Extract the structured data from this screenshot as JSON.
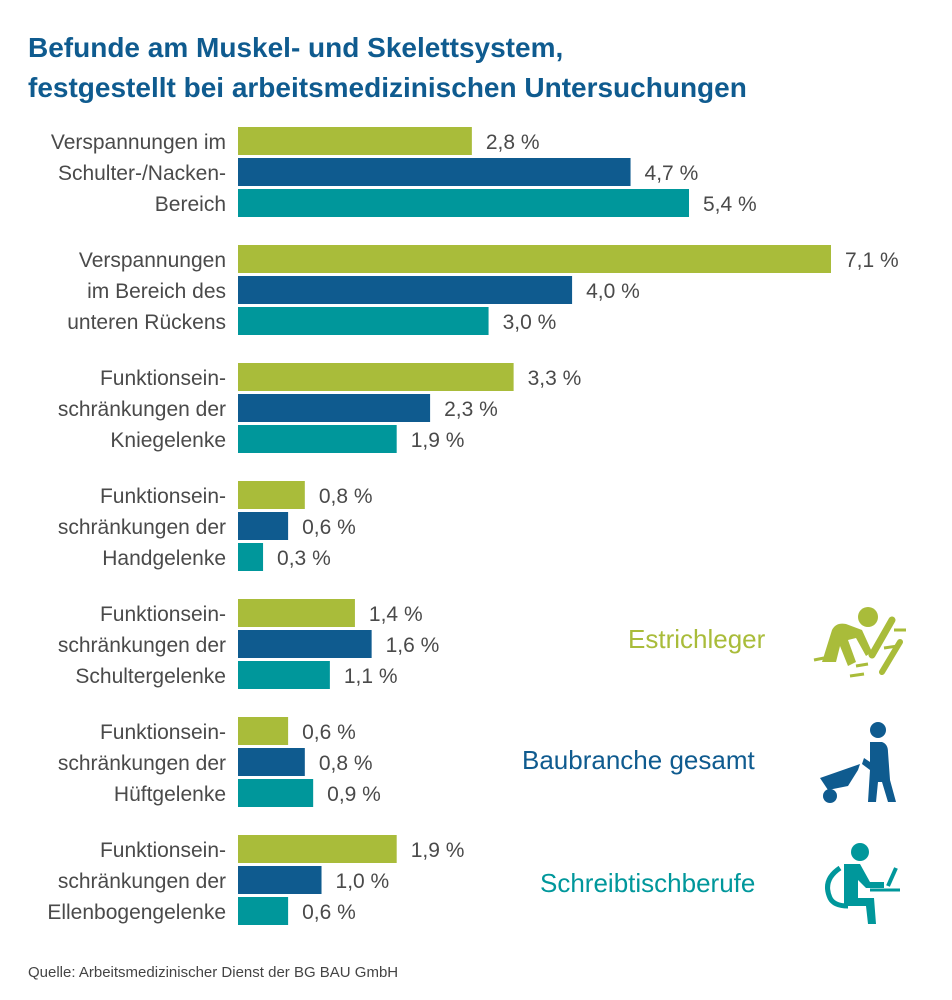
{
  "title": [
    "Befunde am Muskel- und Skelettsystem,",
    "festgestellt bei arbeitsmedizinischen Untersuchungen"
  ],
  "source": "Quelle: Arbeitsmedizinischer Dienst der BG BAU GmbH",
  "colors": {
    "title": "#0f5b8f",
    "text": "#4a4a4a",
    "Estrichleger": "#a9bc3a",
    "Baubranche gesamt": "#0f5b8f",
    "Schreibtischberufe": "#00979b"
  },
  "legend": [
    {
      "label": "Estrichleger",
      "color": "#a9bc3a",
      "icon": "kneeling-worker-icon"
    },
    {
      "label": "Baubranche gesamt",
      "color": "#0f5b8f",
      "icon": "wheelbarrow-worker-icon"
    },
    {
      "label": "Schreibtischberufe",
      "color": "#00979b",
      "icon": "desk-worker-icon"
    }
  ],
  "chart_data": {
    "type": "bar",
    "orientation": "horizontal",
    "categories": [
      [
        "Verspannungen im",
        "Schulter-/Nacken-",
        "Bereich"
      ],
      [
        "Verspannungen",
        "im Bereich des",
        "unteren Rückens"
      ],
      [
        "Funktionsein-",
        "schränkungen der",
        "Kniegelenke"
      ],
      [
        "Funktionsein-",
        "schränkungen der",
        "Handgelenke"
      ],
      [
        "Funktionsein-",
        "schränkungen der",
        "Schultergelenke"
      ],
      [
        "Funktionsein-",
        "schränkungen der",
        "Hüftgelenke"
      ],
      [
        "Funktionsein-",
        "schränkungen der",
        "Ellenbogengelenke"
      ]
    ],
    "series": [
      {
        "name": "Estrichleger",
        "values": [
          2.8,
          7.1,
          3.3,
          0.8,
          1.4,
          0.6,
          1.9
        ],
        "labels": [
          "2,8 %",
          "7,1 %",
          "3,3 %",
          "0,8 %",
          "1,4 %",
          "0,6 %",
          "1,9 %"
        ]
      },
      {
        "name": "Baubranche gesamt",
        "values": [
          4.7,
          4.0,
          2.3,
          0.6,
          1.6,
          0.8,
          1.0
        ],
        "labels": [
          "4,7 %",
          "4,0 %",
          "2,3 %",
          "0,6 %",
          "1,6 %",
          "0,8 %",
          "1,0 %"
        ]
      },
      {
        "name": "Schreibtischberufe",
        "values": [
          5.4,
          3.0,
          1.9,
          0.3,
          1.1,
          0.9,
          0.6
        ],
        "labels": [
          "5,4 %",
          "3,0 %",
          "1,9 %",
          "0,3 %",
          "1,1 %",
          "0,9 %",
          "0,6 %"
        ]
      }
    ],
    "unit": "%",
    "xlim": [
      0,
      7.1
    ],
    "grid": false,
    "legend_position": "right"
  }
}
